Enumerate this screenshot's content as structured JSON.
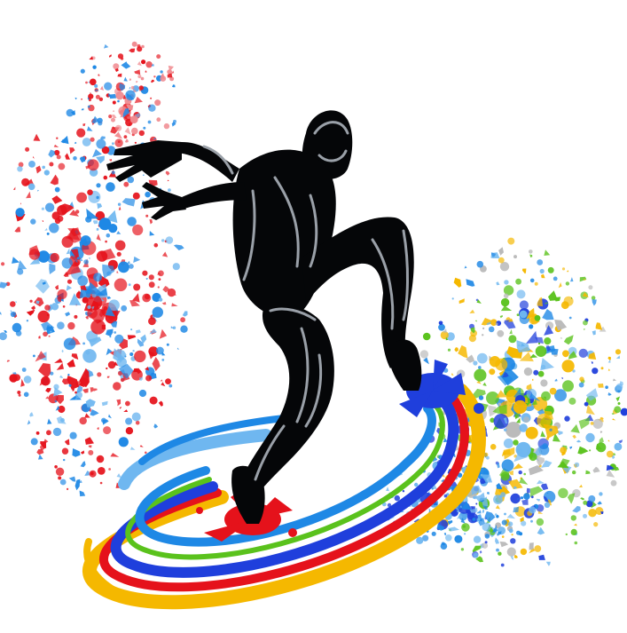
{
  "artwork": {
    "subject": "dancer-silhouette",
    "style": "paint-splash",
    "colors": {
      "background": "#ffffff",
      "silhouette": "#050608",
      "highlight": "#9aa0a8",
      "red": "#e5121b",
      "blue": "#1e88e5",
      "lightblue": "#6fb7f0",
      "deepblue": "#1f3fdc",
      "yellow": "#f5b800",
      "green": "#5ac21c",
      "gray": "#b8b8b8"
    }
  }
}
